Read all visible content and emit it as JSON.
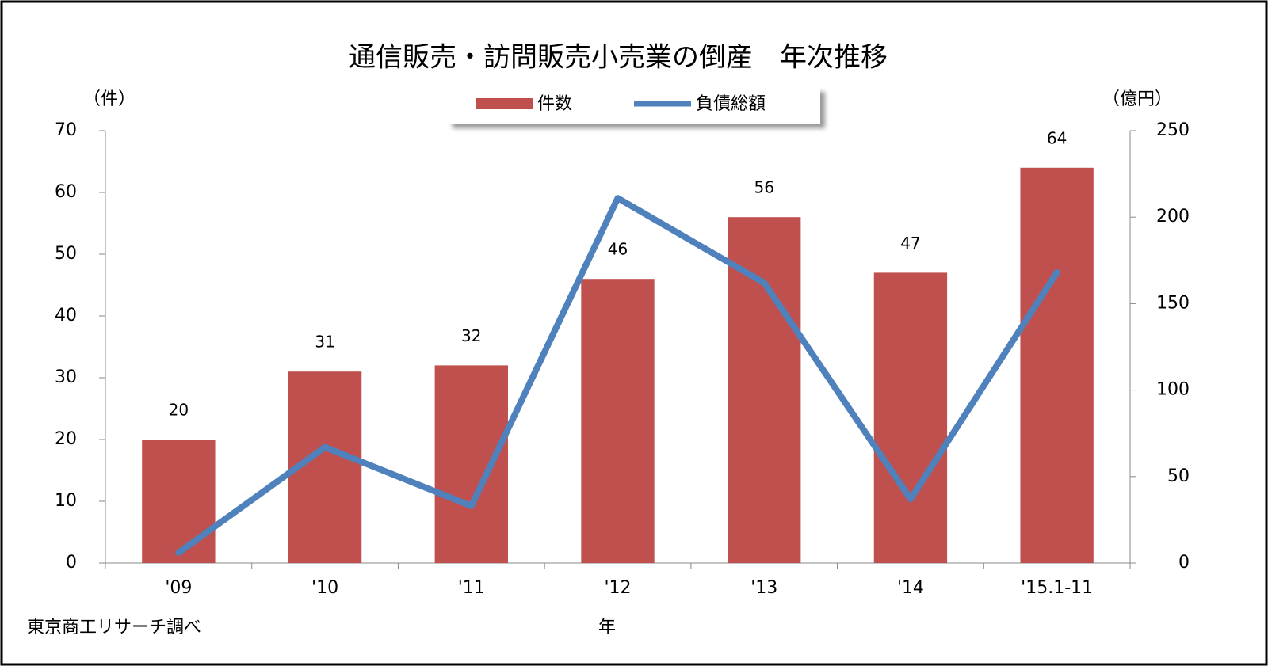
{
  "chart_data": {
    "type": "bar_line",
    "title": "通信販売・訪問販売小売業の倒産　年次推移",
    "y_label": "（件）",
    "y2_label": "（億円）",
    "x_label": "年",
    "source": "東京商工リサーチ調べ",
    "categories": [
      "'09",
      "'10",
      "'11",
      "'12",
      "'13",
      "'14",
      "'15.1-11"
    ],
    "series": [
      {
        "name": "件数",
        "type": "bar",
        "color": "#c0504d",
        "values": [
          20,
          31,
          32,
          46,
          56,
          47,
          64
        ]
      },
      {
        "name": "負債総額",
        "type": "line",
        "axis": "y2",
        "color": "#4f81bd",
        "values": [
          6,
          67,
          33,
          211,
          162,
          37,
          168
        ]
      }
    ],
    "ylim": [
      0,
      70
    ],
    "yticks": [
      0,
      10,
      20,
      30,
      40,
      50,
      60,
      70
    ],
    "y2lim": [
      0,
      250
    ],
    "y2ticks": [
      0,
      50,
      100,
      150,
      200,
      250
    ]
  }
}
